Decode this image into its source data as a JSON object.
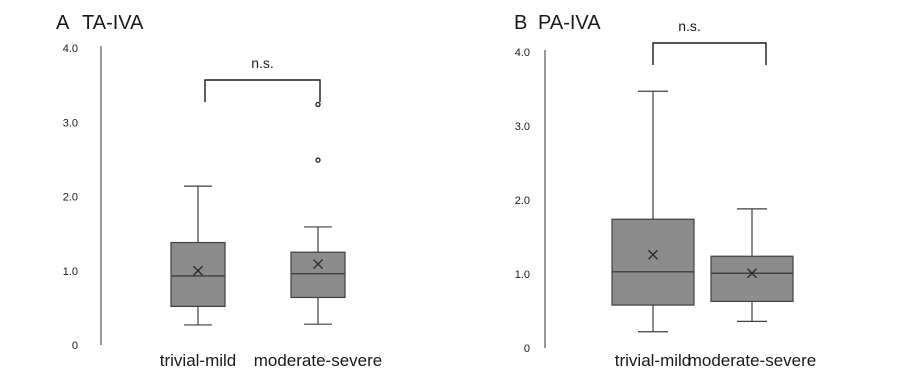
{
  "chart_data": [
    {
      "panel_label": "A",
      "title": "TA-IVA",
      "type": "box",
      "categories": [
        "trivial-mild",
        "moderate-severe"
      ],
      "ylim": [
        0,
        4.0
      ],
      "yticks": [
        "0",
        "1.0",
        "2.0",
        "3.0",
        "4.0"
      ],
      "ytick_values": [
        0,
        1,
        2,
        3,
        4
      ],
      "boxes": [
        {
          "category": "trivial-mild",
          "min": 0.27,
          "q1": 0.52,
          "median": 0.93,
          "q3": 1.38,
          "max": 2.14,
          "mean": 1.0,
          "outliers": []
        },
        {
          "category": "moderate-severe",
          "min": 0.28,
          "q1": 0.64,
          "median": 0.96,
          "q3": 1.25,
          "max": 1.59,
          "mean": 1.09,
          "outliers": [
            2.49,
            3.24
          ]
        }
      ],
      "annotation": "n.s."
    },
    {
      "panel_label": "B",
      "title": "PA-IVA",
      "type": "box",
      "categories": [
        "trivial-mild",
        "moderate-severe"
      ],
      "ylim": [
        0,
        4.0
      ],
      "yticks": [
        "0",
        "1.0",
        "2.0",
        "3.0",
        "4.0"
      ],
      "ytick_values": [
        0,
        1,
        2,
        3,
        4
      ],
      "boxes": [
        {
          "category": "trivial-mild",
          "min": 0.22,
          "q1": 0.58,
          "median": 1.03,
          "q3": 1.74,
          "max": 3.47,
          "mean": 1.26,
          "outliers": []
        },
        {
          "category": "moderate-severe",
          "min": 0.36,
          "q1": 0.63,
          "median": 1.01,
          "q3": 1.24,
          "max": 1.88,
          "mean": 1.01,
          "outliers": []
        }
      ],
      "annotation": "n.s."
    }
  ],
  "colors": {
    "box_fill": "#8c8c8c",
    "stroke": "#3f3f3f",
    "axis": "#555555",
    "text": "#1a1a1a"
  }
}
